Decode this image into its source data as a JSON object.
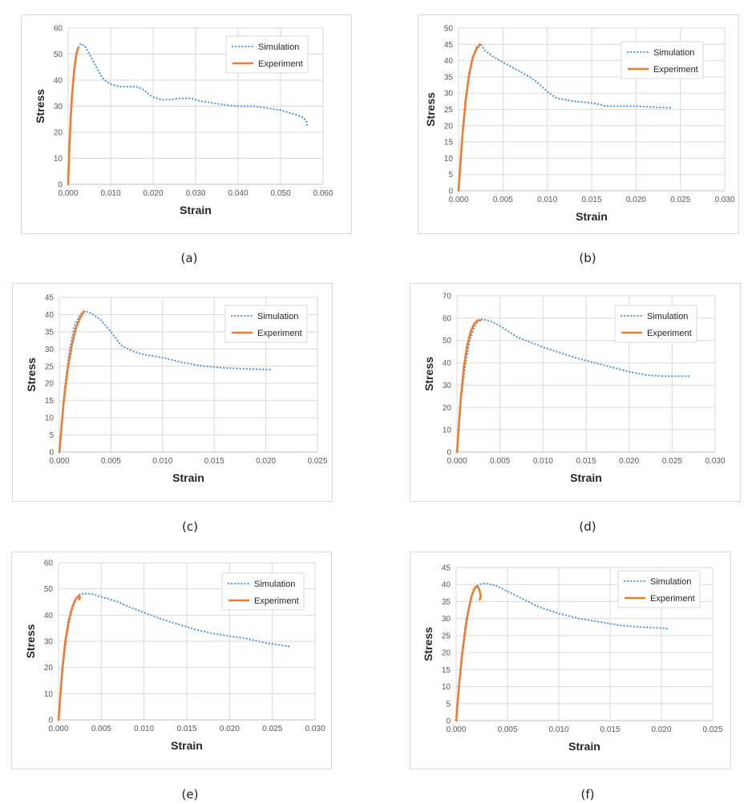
{
  "colors": {
    "simulation": "#5b9bd5",
    "experiment": "#ed7d31",
    "grid": "#d9d9d9",
    "text": "#595959"
  },
  "legend": {
    "simulation": "Simulation",
    "experiment": "Experiment"
  },
  "chart_data": [
    {
      "label": "(a)",
      "type": "line",
      "xlabel": "Strain",
      "ylabel": "Stress",
      "xlim": [
        0,
        0.06
      ],
      "xstep": 0.01,
      "xdec": 3,
      "ylim": [
        0,
        60
      ],
      "ystep": 10,
      "grid": true,
      "legend": "top-right",
      "series": [
        {
          "name": "Simulation",
          "style": "dotted",
          "x": [
            0,
            0.0005,
            0.001,
            0.0015,
            0.002,
            0.0025,
            0.003,
            0.004,
            0.005,
            0.006,
            0.007,
            0.008,
            0.009,
            0.01,
            0.011,
            0.012,
            0.014,
            0.016,
            0.017,
            0.018,
            0.019,
            0.02,
            0.021,
            0.022,
            0.024,
            0.026,
            0.028,
            0.029,
            0.03,
            0.031,
            0.033,
            0.035,
            0.037,
            0.04,
            0.043,
            0.046,
            0.048,
            0.05,
            0.052,
            0.054,
            0.055,
            0.056,
            0.0563
          ],
          "y": [
            0,
            20,
            35,
            45,
            50,
            53,
            54,
            53,
            50,
            47,
            44,
            41,
            39.5,
            38.5,
            38,
            37.5,
            37.5,
            37.5,
            37,
            36,
            34.5,
            33.5,
            33,
            32.5,
            32.5,
            33,
            33,
            33,
            32.5,
            32,
            31.5,
            31,
            30.5,
            30,
            30,
            29.5,
            29,
            28.5,
            27.5,
            26.5,
            26,
            24.5,
            22.5
          ]
        },
        {
          "name": "Experiment",
          "style": "solid",
          "x": [
            0,
            0.0003,
            0.0006,
            0.0009,
            0.0012,
            0.0015,
            0.0018,
            0.0021,
            0.0024
          ],
          "y": [
            0,
            15,
            26,
            34,
            40,
            45,
            48.5,
            51,
            52.5
          ]
        }
      ]
    },
    {
      "label": "(b)",
      "type": "line",
      "xlabel": "Strain",
      "ylabel": "Stress",
      "xlim": [
        0,
        0.03
      ],
      "xstep": 0.005,
      "xdec": 3,
      "ylim": [
        0,
        50
      ],
      "ystep": 5,
      "grid": true,
      "legend": "top-right",
      "series": [
        {
          "name": "Simulation",
          "style": "dotted",
          "x": [
            0,
            0.0005,
            0.001,
            0.0015,
            0.002,
            0.0025,
            0.003,
            0.004,
            0.005,
            0.006,
            0.007,
            0.008,
            0.009,
            0.01,
            0.011,
            0.012,
            0.013,
            0.015,
            0.016,
            0.0165,
            0.018,
            0.02,
            0.022,
            0.024
          ],
          "y": [
            0,
            18,
            32,
            40,
            44,
            45,
            43,
            41,
            39.5,
            38,
            36.5,
            35,
            33,
            30.5,
            28.5,
            28,
            27.5,
            27,
            26.5,
            26,
            26,
            26,
            25.7,
            25.5
          ]
        },
        {
          "name": "Experiment",
          "style": "solid",
          "x": [
            0,
            0.0004,
            0.0008,
            0.0012,
            0.0016,
            0.002,
            0.0024
          ],
          "y": [
            0,
            16,
            28,
            36,
            41,
            43.5,
            45
          ]
        }
      ]
    },
    {
      "label": "(c)",
      "type": "line",
      "xlabel": "Strain",
      "ylabel": "Stress",
      "xlim": [
        0,
        0.025
      ],
      "xstep": 0.005,
      "xdec": 3,
      "ylim": [
        0,
        45
      ],
      "ystep": 5,
      "grid": true,
      "legend": "top-right",
      "series": [
        {
          "name": "Simulation",
          "style": "dotted",
          "x": [
            0,
            0.0005,
            0.001,
            0.0015,
            0.002,
            0.0025,
            0.003,
            0.004,
            0.005,
            0.006,
            0.007,
            0.008,
            0.009,
            0.01,
            0.012,
            0.014,
            0.016,
            0.018,
            0.0205
          ],
          "y": [
            0,
            18,
            30,
            37,
            40,
            41,
            40.5,
            38.5,
            35,
            31,
            29.5,
            28.5,
            28,
            27.5,
            26,
            25,
            24.5,
            24.2,
            24
          ]
        },
        {
          "name": "Experiment",
          "style": "solid",
          "x": [
            0,
            0.0004,
            0.0008,
            0.0012,
            0.0016,
            0.002,
            0.0024
          ],
          "y": [
            0,
            14,
            24,
            31,
            36,
            39,
            41
          ]
        }
      ]
    },
    {
      "label": "(d)",
      "type": "line",
      "xlabel": "Strain",
      "ylabel": "Stress",
      "xlim": [
        0,
        0.03
      ],
      "xstep": 0.005,
      "xdec": 3,
      "ylim": [
        0,
        70
      ],
      "ystep": 10,
      "grid": true,
      "legend": "top-right",
      "series": [
        {
          "name": "Simulation",
          "style": "dotted",
          "x": [
            0,
            0.0005,
            0.001,
            0.0015,
            0.002,
            0.0025,
            0.003,
            0.004,
            0.005,
            0.006,
            0.007,
            0.008,
            0.01,
            0.012,
            0.014,
            0.016,
            0.018,
            0.02,
            0.022,
            0.024,
            0.026,
            0.027
          ],
          "y": [
            0,
            25,
            40,
            50,
            56,
            59,
            59.5,
            58.5,
            56.5,
            54,
            51.5,
            50,
            47,
            44.5,
            42,
            40,
            38,
            36,
            34.5,
            34,
            34,
            34
          ]
        },
        {
          "name": "Experiment",
          "style": "solid",
          "x": [
            0,
            0.0004,
            0.0008,
            0.0012,
            0.0016,
            0.002,
            0.0024,
            0.0027
          ],
          "y": [
            0,
            22,
            38,
            48,
            54,
            57.5,
            59,
            59
          ]
        }
      ]
    },
    {
      "label": "(e)",
      "type": "line",
      "xlabel": "Strain",
      "ylabel": "Stress",
      "xlim": [
        0,
        0.03
      ],
      "xstep": 0.005,
      "xdec": 3,
      "ylim": [
        0,
        60
      ],
      "ystep": 10,
      "grid": true,
      "legend": "top-right",
      "series": [
        {
          "name": "Simulation",
          "style": "dotted",
          "x": [
            0,
            0.0005,
            0.001,
            0.0015,
            0.002,
            0.0025,
            0.003,
            0.004,
            0.005,
            0.006,
            0.007,
            0.008,
            0.01,
            0.012,
            0.014,
            0.016,
            0.018,
            0.02,
            0.022,
            0.024,
            0.026,
            0.027
          ],
          "y": [
            0,
            20,
            33,
            41,
            46,
            48,
            48.2,
            48,
            47,
            46,
            45,
            43.5,
            41,
            38.5,
            36.5,
            34.5,
            33,
            32,
            31,
            29.5,
            28.5,
            28
          ]
        },
        {
          "name": "Experiment",
          "style": "solid",
          "x": [
            0,
            0.0004,
            0.0008,
            0.0012,
            0.0016,
            0.002,
            0.0022,
            0.0024,
            0.0025,
            0.0024,
            0.0025
          ],
          "y": [
            0,
            18,
            30,
            38,
            43,
            46,
            47,
            47.3,
            47,
            46,
            46.5
          ]
        }
      ]
    },
    {
      "label": "(f)",
      "type": "line",
      "xlabel": "Strain",
      "ylabel": "Stress",
      "xlim": [
        0,
        0.025
      ],
      "xstep": 0.005,
      "xdec": 3,
      "ylim": [
        0,
        45
      ],
      "ystep": 5,
      "grid": true,
      "legend": "top-right",
      "series": [
        {
          "name": "Simulation",
          "style": "dotted",
          "x": [
            0,
            0.0005,
            0.001,
            0.0015,
            0.002,
            0.0025,
            0.003,
            0.004,
            0.005,
            0.006,
            0.007,
            0.008,
            0.009,
            0.01,
            0.012,
            0.014,
            0.016,
            0.018,
            0.02,
            0.0207
          ],
          "y": [
            0,
            18,
            30,
            37,
            39.5,
            40.3,
            40.3,
            39.5,
            38,
            36.5,
            35,
            33.5,
            32.5,
            31.5,
            30,
            29,
            28,
            27.5,
            27.2,
            27
          ]
        },
        {
          "name": "Experiment",
          "style": "solid",
          "x": [
            0,
            0.0003,
            0.0006,
            0.0009,
            0.0012,
            0.0015,
            0.0018,
            0.002,
            0.0022,
            0.0023,
            0.0024,
            0.0023
          ],
          "y": [
            0,
            11,
            20,
            27,
            32.5,
            36.5,
            39,
            39.5,
            39,
            38,
            36.5,
            35.5
          ]
        }
      ]
    }
  ]
}
